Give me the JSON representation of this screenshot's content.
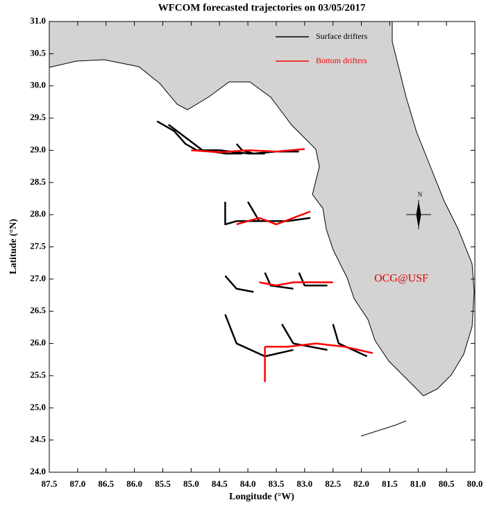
{
  "chart_data": {
    "type": "line",
    "title": "WFCOM forecasted trajectories on 03/05/2017",
    "x_label": "Longitude (°W)",
    "y_label": "Latitude (°N)",
    "annotation": "OCG@USF",
    "compass_label": "N",
    "xlim": [
      87.5,
      80.0
    ],
    "xticks": [
      {
        "value": 87.5,
        "label": "87.5"
      },
      {
        "value": 87,
        "label": "87.0"
      },
      {
        "value": 86.5,
        "label": "86.5"
      },
      {
        "value": 86,
        "label": "86.0"
      },
      {
        "value": 85.5,
        "label": "85.5"
      },
      {
        "value": 85,
        "label": "85.0"
      },
      {
        "value": 84.5,
        "label": "84.5"
      },
      {
        "value": 84,
        "label": "84.0"
      },
      {
        "value": 83.5,
        "label": "83.5"
      },
      {
        "value": 83,
        "label": "83.0"
      },
      {
        "value": 82.5,
        "label": "82.5"
      },
      {
        "value": 82,
        "label": "82.0"
      },
      {
        "value": 81.5,
        "label": "81.5"
      },
      {
        "value": 81,
        "label": "81.0"
      },
      {
        "value": 80.5,
        "label": "80.5"
      },
      {
        "value": 80,
        "label": "80.0"
      }
    ],
    "ylim": [
      24,
      31
    ],
    "yticks": [
      {
        "value": 24,
        "label": "24.0"
      },
      {
        "value": 24.5,
        "label": "24.5"
      },
      {
        "value": 25,
        "label": "25.0"
      },
      {
        "value": 25.5,
        "label": "25.5"
      },
      {
        "value": 26,
        "label": "26.0"
      },
      {
        "value": 26.5,
        "label": "26.5"
      },
      {
        "value": 27,
        "label": "27.0"
      },
      {
        "value": 27.5,
        "label": "27.5"
      },
      {
        "value": 28,
        "label": "28.0"
      },
      {
        "value": 28.5,
        "label": "28.5"
      },
      {
        "value": 29,
        "label": "29.0"
      },
      {
        "value": 29.5,
        "label": "29.5"
      },
      {
        "value": 30,
        "label": "30.0"
      },
      {
        "value": 30.5,
        "label": "30.5"
      },
      {
        "value": 31,
        "label": "31.0"
      }
    ],
    "series": [
      {
        "name": "Surface drifters",
        "color": "#000000",
        "x": [
          85.6,
          85.3,
          85.1,
          84.9,
          84.5,
          84.0,
          83.7,
          null,
          85.4,
          85.1,
          84.8,
          84.4,
          84.1,
          null,
          84.2,
          84.1,
          83.9,
          83.5,
          83.1,
          null,
          84.4,
          84.4,
          84.2,
          83.8,
          null,
          84.0,
          83.8,
          83.3,
          82.9,
          null,
          84.4,
          84.2,
          83.9,
          null,
          83.7,
          83.6,
          83.2,
          null,
          83.1,
          83.0,
          82.6,
          null,
          84.4,
          84.2,
          83.7,
          83.2,
          null,
          83.4,
          83.2,
          82.6,
          null,
          82.5,
          82.4,
          81.9
        ],
        "y": [
          29.45,
          29.3,
          29.1,
          29.0,
          29.0,
          28.95,
          28.95,
          null,
          29.4,
          29.2,
          29.0,
          28.95,
          28.95,
          null,
          29.1,
          29.0,
          28.95,
          28.98,
          28.98,
          null,
          28.2,
          27.85,
          27.9,
          27.9,
          null,
          28.2,
          27.9,
          27.9,
          27.95,
          null,
          27.05,
          26.85,
          26.8,
          null,
          27.1,
          26.9,
          26.85,
          null,
          27.1,
          26.9,
          26.9,
          null,
          26.45,
          26.0,
          25.8,
          25.9,
          null,
          26.3,
          26.0,
          25.9,
          null,
          26.3,
          26.0,
          25.8
        ]
      },
      {
        "name": "Bottom drifters",
        "color": "#ff0000",
        "x": [
          85.0,
          84.5,
          84.0,
          83.5,
          83.0,
          null,
          84.2,
          83.8,
          83.5,
          83.2,
          82.9,
          null,
          83.8,
          83.5,
          83.2,
          82.8,
          82.5,
          null,
          83.7,
          83.3,
          82.8,
          82.3,
          81.8,
          null,
          83.7,
          83.7
        ],
        "y": [
          29.0,
          28.97,
          29.0,
          28.98,
          29.02,
          null,
          27.85,
          27.95,
          27.85,
          27.95,
          28.05,
          null,
          26.95,
          26.9,
          26.95,
          26.95,
          26.95,
          null,
          25.95,
          25.95,
          26.0,
          25.95,
          25.85,
          null,
          25.95,
          25.4
        ]
      }
    ]
  }
}
